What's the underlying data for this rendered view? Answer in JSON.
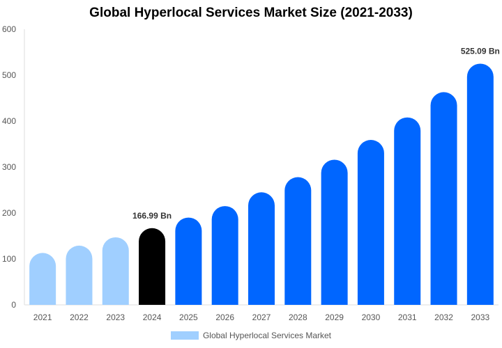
{
  "chart_data": {
    "type": "bar",
    "title": "Global Hyperlocal Services Market Size (2021-2033)",
    "categories": [
      "2021",
      "2022",
      "2023",
      "2024",
      "2025",
      "2026",
      "2027",
      "2028",
      "2029",
      "2030",
      "2031",
      "2032",
      "2033"
    ],
    "series": [
      {
        "name": "Global Hyperlocal Services Market",
        "values": [
          113,
          129,
          147,
          166.99,
          190,
          215,
          245,
          278,
          316,
          359,
          408,
          463,
          525.09
        ]
      }
    ],
    "bar_colors": [
      "#a0cfff",
      "#a0cfff",
      "#a0cfff",
      "#000000",
      "#0066ff",
      "#0066ff",
      "#0066ff",
      "#0066ff",
      "#0066ff",
      "#0066ff",
      "#0066ff",
      "#0066ff",
      "#0066ff"
    ],
    "data_labels": [
      {
        "category": "2024",
        "text": "166.99 Bn"
      },
      {
        "category": "2033",
        "text": "525.09 Bn"
      }
    ],
    "yticks": [
      0,
      100,
      200,
      300,
      400,
      500,
      600
    ],
    "ylim": [
      0,
      600
    ],
    "xlabel": "",
    "ylabel": "",
    "grid": false,
    "legend_position": "bottom",
    "legend_color": "#a0cfff"
  }
}
